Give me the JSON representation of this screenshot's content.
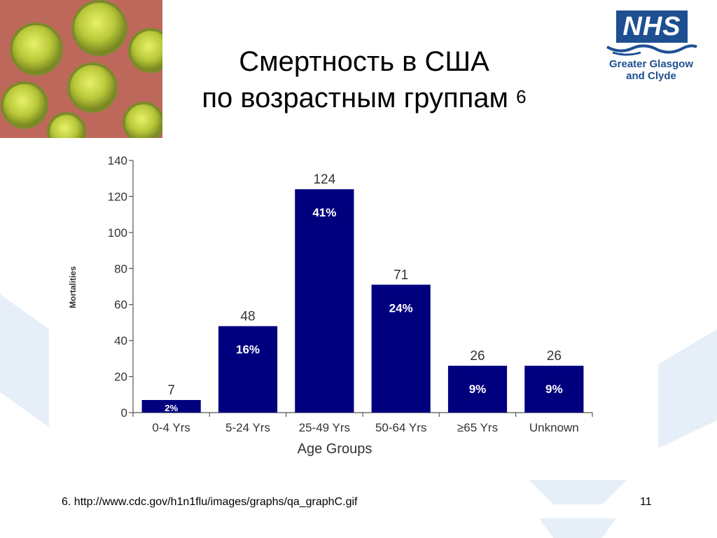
{
  "slide": {
    "title_line1": "Смертность в США",
    "title_line2": "по возрастным группам",
    "title_superscript": "6",
    "footnote": "6. http://www.cdc.gov/h1n1flu/images/graphs/qa_graphC.gif",
    "slide_number": "11"
  },
  "logo": {
    "wordmark": "NHS",
    "line1": "Greater Glasgow",
    "line2": "and Clyde",
    "color": "#1d4f91"
  },
  "image": {
    "subject": "virus-micrograph"
  },
  "colors": {
    "bar": "#00007f",
    "background_accent": "#e6eff7"
  },
  "chart_data": {
    "type": "bar",
    "categories": [
      "0-4 Yrs",
      "5-24 Yrs",
      "25-49 Yrs",
      "50-64 Yrs",
      "≥65 Yrs",
      "Unknown"
    ],
    "values": [
      7,
      48,
      124,
      71,
      26,
      26
    ],
    "percent_labels": [
      "2%",
      "16%",
      "41%",
      "24%",
      "9%",
      "9%"
    ],
    "xlabel": "Age Groups",
    "ylabel": "Mortalities",
    "ylim": [
      0,
      140
    ],
    "yticks": [
      "0",
      "20",
      "40",
      "60",
      "80",
      "100",
      "120",
      "140"
    ],
    "grid": false,
    "legend": "none"
  }
}
